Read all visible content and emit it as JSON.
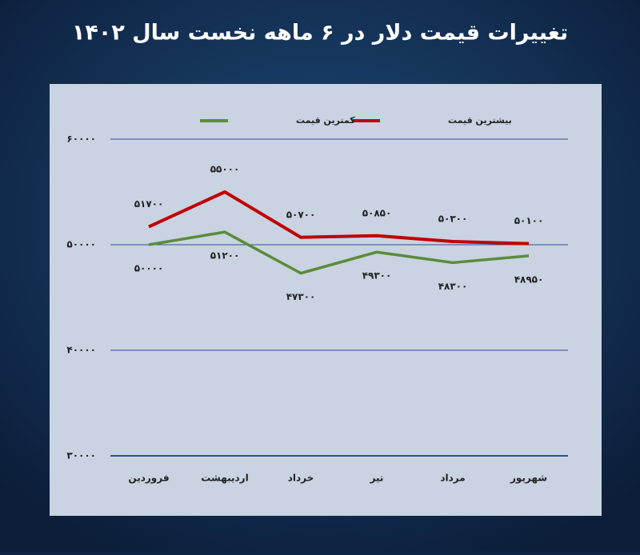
{
  "chart_data": {
    "type": "line",
    "title": "تغییرات قیمت دلار در ۶ ماهه نخست سال ۱۴۰۲",
    "categories": [
      "فروردین",
      "اردیبهشت",
      "خرداد",
      "تیر",
      "مرداد",
      "شهریور"
    ],
    "series": [
      {
        "name": "بیشترین قیمت",
        "color": "#c00000",
        "values": [
          51700,
          55000,
          50700,
          50850,
          50300,
          50100
        ],
        "value_labels": [
          "۵۱۷۰۰",
          "۵۵۰۰۰",
          "۵۰۷۰۰",
          "۵۰۸۵۰",
          "۵۰۳۰۰",
          "۵۰۱۰۰"
        ]
      },
      {
        "name": "کمترین قیمت",
        "color": "#5b8c3a",
        "values": [
          50000,
          51200,
          47300,
          49300,
          48300,
          48950
        ],
        "value_labels": [
          "۵۰۰۰۰",
          "۵۱۲۰۰",
          "۴۷۳۰۰",
          "۴۹۳۰۰",
          "۴۸۳۰۰",
          "۴۸۹۵۰"
        ]
      }
    ],
    "ylim": [
      30000,
      60000
    ],
    "yticks": [
      {
        "value": 30000,
        "label": "۳۰۰۰۰"
      },
      {
        "value": 40000,
        "label": "۴۰۰۰۰"
      },
      {
        "value": 50000,
        "label": "۵۰۰۰۰"
      },
      {
        "value": 60000,
        "label": "۶۰۰۰۰"
      }
    ],
    "grid": true
  }
}
